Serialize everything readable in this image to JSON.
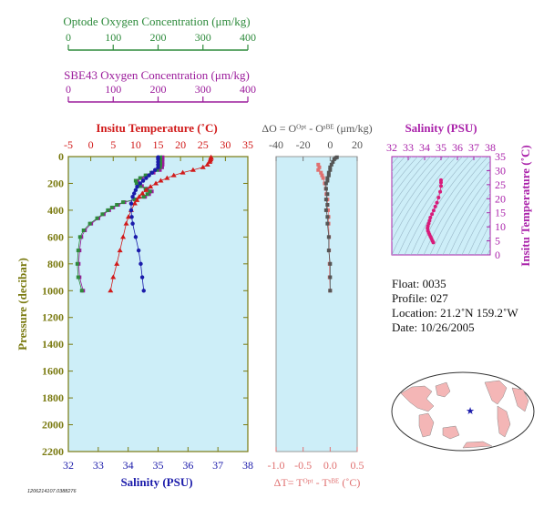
{
  "colors": {
    "optode": "#2e8b3c",
    "sbe43": "#9b1b9b",
    "temperature": "#d11a1a",
    "salinity": "#1a1aaa",
    "axis_main": "#7a7a10",
    "delta_o": "#555555",
    "delta_t": "#e07070",
    "panel_bg": "#cdeef8",
    "ts_points": "#d81b7a",
    "ts_axis": "#aa22aa",
    "land": "#f4b6b6",
    "star": "#1a1aaa"
  },
  "scales": {
    "optode": {
      "title": "Optode Oxygen Concentration (μm/kg)",
      "ticks": [
        "0",
        "100",
        "200",
        "300",
        "400"
      ]
    },
    "sbe43": {
      "title": "SBE43 Oxygen Concentration (μm/kg)",
      "ticks": [
        "0",
        "100",
        "200",
        "300",
        "400"
      ]
    }
  },
  "info": {
    "float": "Float:  0035",
    "profile": "Profile:  027",
    "location": "Location:  21.2˚N  159.2˚W",
    "date": "Date:  10/26/2005"
  },
  "stamp": "1206214107.0388276",
  "chart_data": [
    {
      "type": "scatter",
      "panel": "profile",
      "title": "Insitu Temperature (˚C)",
      "xlabel": "Salinity (PSU)",
      "ylabel": "Pressure (decibar)",
      "top_axis": {
        "label": "Insitu Temperature (˚C)",
        "range": [
          -5,
          35
        ],
        "ticks": [
          "-5",
          "0",
          "5",
          "10",
          "15",
          "20",
          "25",
          "30",
          "35"
        ]
      },
      "bottom_axis": {
        "label": "Salinity (PSU)",
        "range": [
          32,
          38
        ],
        "ticks": [
          "32",
          "33",
          "34",
          "35",
          "36",
          "37",
          "38"
        ]
      },
      "y_axis": {
        "label": "Pressure (decibar)",
        "range": [
          0,
          2200
        ],
        "inverted": true,
        "ticks": [
          "0",
          "200",
          "400",
          "600",
          "800",
          "1000",
          "1200",
          "1400",
          "1600",
          "1800",
          "2000",
          "2200"
        ]
      },
      "temperature": {
        "pressure": [
          5,
          10,
          20,
          30,
          40,
          60,
          80,
          100,
          120,
          140,
          160,
          180,
          200,
          225,
          250,
          275,
          300,
          325,
          350,
          400,
          450,
          500,
          600,
          700,
          800,
          900,
          1000
        ],
        "values": [
          26.8,
          26.8,
          26.7,
          26.6,
          26.5,
          26.0,
          25.0,
          22.8,
          20.5,
          18.5,
          17.0,
          15.6,
          14.5,
          13.3,
          12.3,
          11.5,
          10.8,
          10.3,
          9.8,
          9.0,
          8.4,
          7.9,
          7.2,
          6.5,
          5.8,
          5.0,
          4.4
        ]
      },
      "salinity": {
        "pressure": [
          5,
          10,
          20,
          40,
          60,
          80,
          100,
          120,
          140,
          160,
          180,
          200,
          225,
          250,
          275,
          300,
          350,
          400,
          450,
          500,
          600,
          700,
          800,
          900,
          1000
        ],
        "values": [
          35.0,
          35.0,
          35.0,
          35.0,
          35.0,
          35.0,
          34.9,
          34.8,
          34.7,
          34.6,
          34.5,
          34.4,
          34.3,
          34.25,
          34.2,
          34.15,
          34.1,
          34.1,
          34.12,
          34.15,
          34.25,
          34.35,
          34.42,
          34.47,
          34.52
        ]
      },
      "oxygen_optode": {
        "pressure": [
          5,
          10,
          20,
          40,
          60,
          80,
          100,
          120,
          140,
          160,
          180,
          200,
          220,
          240,
          260,
          280,
          300,
          320,
          340,
          360,
          380,
          400,
          430,
          460,
          500,
          550,
          600,
          700,
          800,
          900,
          1000
        ],
        "values": [
          205,
          205,
          205,
          205,
          205,
          204,
          198,
          185,
          172,
          160,
          150,
          152,
          160,
          172,
          182,
          176,
          168,
          148,
          122,
          108,
          97,
          88,
          76,
          64,
          48,
          34,
          26,
          22,
          20,
          22,
          30
        ]
      },
      "oxygen_sbe43": {
        "pressure": [
          5,
          10,
          20,
          40,
          60,
          80,
          100,
          120,
          140,
          160,
          180,
          200,
          220,
          240,
          260,
          280,
          300,
          320,
          340,
          360,
          380,
          400,
          430,
          460,
          500,
          550,
          600,
          700,
          800,
          900,
          1000
        ],
        "values": [
          210,
          210,
          210,
          210,
          210,
          209,
          204,
          190,
          176,
          164,
          154,
          156,
          164,
          176,
          186,
          180,
          171,
          151,
          125,
          111,
          100,
          91,
          79,
          67,
          51,
          37,
          29,
          25,
          23,
          25,
          33
        ]
      }
    },
    {
      "type": "scatter",
      "panel": "difference",
      "top_axis": {
        "label": "ΔO = Oᴼᵖᵗ - Oˢᴮᴱ (μm/kg)",
        "range": [
          -40,
          20
        ],
        "ticks": [
          "-40",
          "-20",
          "0",
          "20"
        ]
      },
      "bottom_axis": {
        "label": "ΔT= Tᴼᵖᵗ - Tˢᴮᴱ (˚C)",
        "range": [
          -1.0,
          0.5
        ],
        "ticks": [
          "-1.0",
          "-0.5",
          "0.0",
          "0.5"
        ]
      },
      "y_axis": {
        "range": [
          0,
          2200
        ],
        "inverted": true
      },
      "delta_o": {
        "pressure": [
          5,
          10,
          20,
          40,
          60,
          80,
          100,
          120,
          140,
          160,
          180,
          200,
          240,
          280,
          320,
          360,
          400,
          450,
          500,
          600,
          700,
          800,
          900,
          1000
        ],
        "values": [
          5,
          4,
          3,
          2,
          1,
          0,
          0,
          -1,
          -1,
          -2,
          -2,
          -3,
          -3,
          -2,
          -3,
          -2,
          -3,
          -2,
          -2,
          -1,
          -1,
          0,
          0,
          0
        ]
      },
      "delta_t": {
        "pressure": [
          60,
          80,
          100,
          120,
          140,
          160,
          200,
          240,
          280,
          320,
          360,
          400,
          450,
          500,
          600,
          700,
          800,
          900,
          1000
        ],
        "values": [
          -0.22,
          -0.2,
          -0.22,
          -0.17,
          -0.15,
          -0.13,
          -0.1,
          -0.08,
          -0.07,
          -0.05,
          -0.05,
          -0.04,
          -0.03,
          -0.03,
          -0.02,
          -0.02,
          -0.01,
          -0.01,
          0.0
        ]
      }
    },
    {
      "type": "scatter",
      "panel": "ts_diagram",
      "title": "Salinity (PSU)",
      "ylabel": "Insitu Temperature (˚C)",
      "x_axis": {
        "label": "Salinity (PSU)",
        "range": [
          32,
          38
        ],
        "ticks": [
          "32",
          "33",
          "34",
          "35",
          "36",
          "37",
          "38"
        ]
      },
      "y_axis": {
        "label": "Insitu Temperature (˚C)",
        "range": [
          0,
          35
        ],
        "ticks": [
          "0",
          "5",
          "10",
          "15",
          "20",
          "25",
          "30",
          "35"
        ]
      },
      "salinity": [
        34.53,
        34.48,
        34.42,
        34.36,
        34.3,
        34.25,
        34.2,
        34.18,
        34.2,
        34.25,
        34.3,
        34.35,
        34.45,
        34.55,
        34.65,
        34.75,
        34.85,
        34.95,
        35.0,
        35.0,
        35.0
      ],
      "temperature": [
        4.4,
        5.0,
        5.8,
        6.5,
        7.2,
        7.9,
        8.6,
        9.5,
        10.3,
        11.2,
        12.2,
        13.3,
        14.5,
        15.8,
        17.2,
        18.6,
        20.4,
        22.5,
        24.5,
        25.8,
        26.6
      ]
    }
  ],
  "map": {
    "marker": {
      "lat": 21.2,
      "lon": -159.2
    }
  }
}
